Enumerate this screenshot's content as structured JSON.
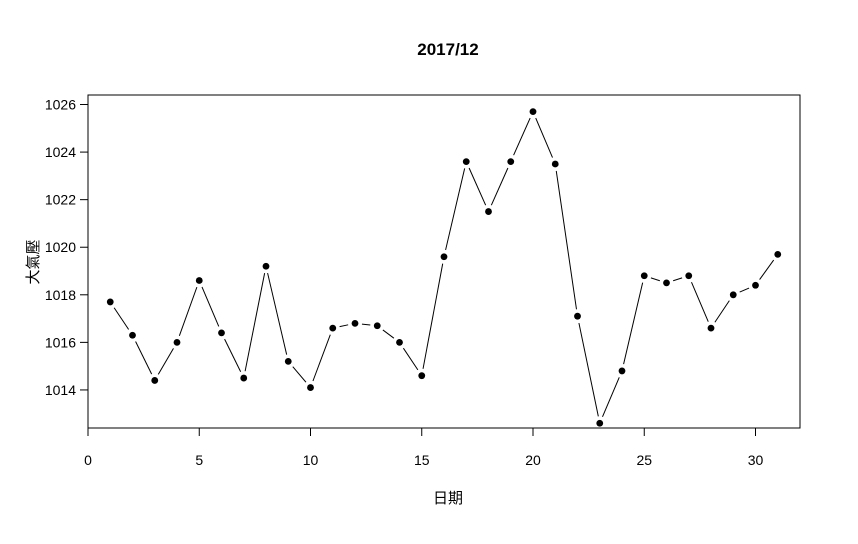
{
  "chart_data": {
    "type": "line",
    "title": "2017/12",
    "xlabel": "日期",
    "ylabel": "大氣壓",
    "xlim": [
      0,
      32
    ],
    "ylim": [
      1012.4,
      1026.4
    ],
    "x_ticks": [
      0,
      5,
      10,
      15,
      20,
      25,
      30
    ],
    "y_ticks": [
      1014,
      1016,
      1018,
      1020,
      1022,
      1024,
      1026
    ],
    "grid": false,
    "markers": "filled-circle",
    "line_color": "#000000",
    "series": [
      {
        "x": [
          1,
          2,
          3,
          4,
          5,
          6,
          7,
          8,
          9,
          10,
          11,
          12,
          13,
          14,
          15,
          16,
          17,
          18,
          19,
          20,
          21,
          22,
          23,
          24,
          25,
          26,
          27,
          28,
          29,
          30,
          31
        ],
        "values": [
          1017.7,
          1016.3,
          1014.4,
          1016.0,
          1018.6,
          1016.4,
          1014.5,
          1019.2,
          1015.2,
          1014.1,
          1016.6,
          1016.8,
          1016.7,
          1016.0,
          1014.6,
          1019.6,
          1023.6,
          1021.5,
          1023.6,
          1025.7,
          1023.5,
          1017.1,
          1012.6,
          1014.8,
          1018.8,
          1018.5,
          1018.8,
          1016.6,
          1018.0,
          1018.4,
          1019.7
        ]
      }
    ]
  }
}
